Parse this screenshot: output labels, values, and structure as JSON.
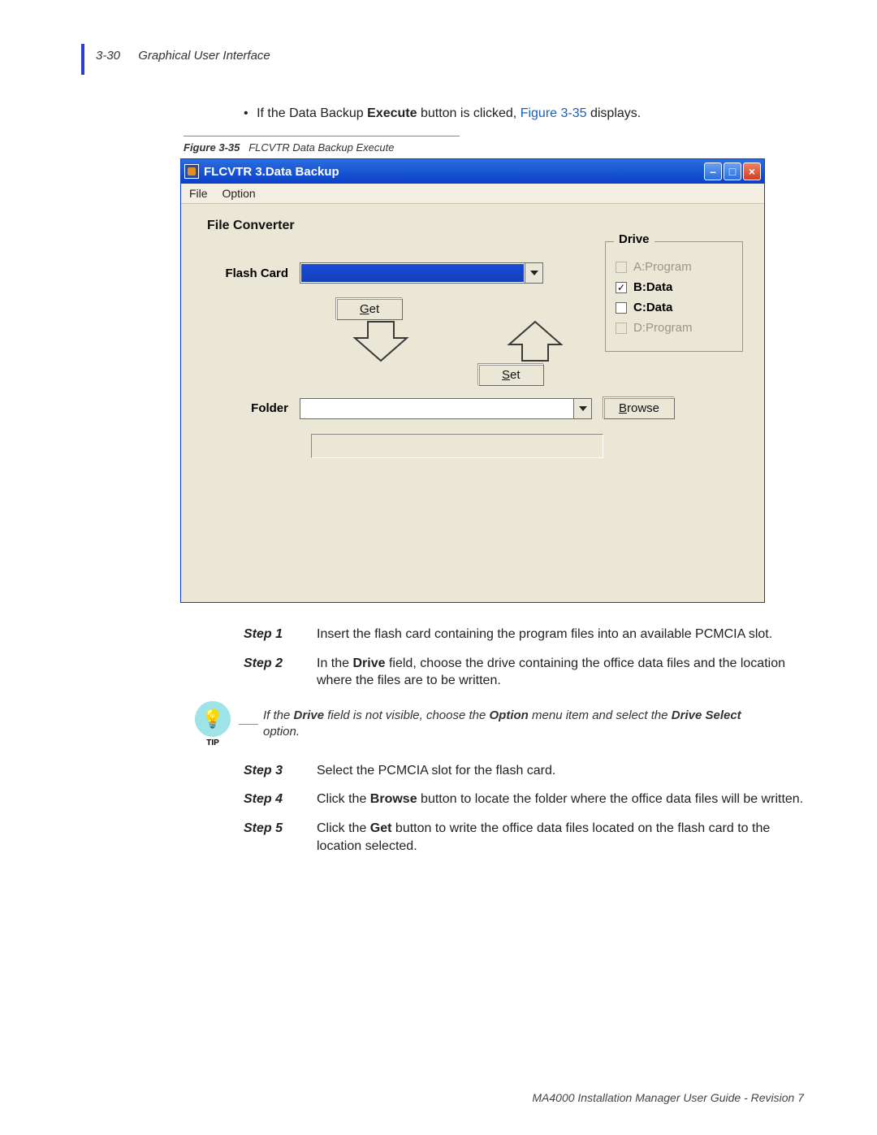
{
  "header": {
    "page_num": "3-30",
    "section": "Graphical User Interface"
  },
  "intro": {
    "pre": "If the Data Backup ",
    "bold": "Execute",
    "mid": " button is clicked, ",
    "link": "Figure 3-35",
    "post": " displays."
  },
  "figure": {
    "num": "Figure 3-35",
    "title": "FLCVTR Data Backup Execute"
  },
  "window": {
    "title": "FLCVTR  3.Data Backup",
    "menu": {
      "file": "File",
      "option": "Option"
    },
    "heading": "File Converter",
    "drive": {
      "legend": "Drive",
      "items": [
        {
          "label": "A:Program",
          "checked": false,
          "enabled": false
        },
        {
          "label": "B:Data",
          "checked": true,
          "enabled": true
        },
        {
          "label": "C:Data",
          "checked": false,
          "enabled": true
        },
        {
          "label": "D:Program",
          "checked": false,
          "enabled": false
        }
      ]
    },
    "flash_label": "Flash Card",
    "folder_label": "Folder",
    "get_label": "Get",
    "set_label": "Set",
    "browse_label": "Browse",
    "colors": {
      "titlebar_start": "#2a6de0",
      "titlebar_end": "#0a3fc7",
      "client_bg": "#eae7d7",
      "combo_highlight": "#1a4bd8"
    }
  },
  "steps": [
    {
      "n": "Step 1",
      "parts": [
        {
          "t": "Insert the flash card containing the program files into an available PCMCIA slot."
        }
      ]
    },
    {
      "n": "Step 2",
      "parts": [
        {
          "t": "In the "
        },
        {
          "b": "Drive"
        },
        {
          "t": " field, choose the drive containing the office data files and the location where the files are to be written."
        }
      ]
    },
    {
      "n": "Step 3",
      "parts": [
        {
          "t": "Select the PCMCIA slot for the flash card."
        }
      ]
    },
    {
      "n": "Step 4",
      "parts": [
        {
          "t": "Click the "
        },
        {
          "b": "Browse"
        },
        {
          "t": " button to locate the folder where the office data files will be written."
        }
      ]
    },
    {
      "n": "Step 5",
      "parts": [
        {
          "t": "Click the "
        },
        {
          "b": "Get"
        },
        {
          "t": " button to write the office data files located on the flash card to the location selected."
        }
      ]
    }
  ],
  "tip": {
    "label": "TIP",
    "parts": [
      {
        "t": "If the "
      },
      {
        "b": "Drive"
      },
      {
        "t": " field is not visible, choose the "
      },
      {
        "b": "Option"
      },
      {
        "t": " menu item and select the "
      },
      {
        "b": "Drive Select"
      },
      {
        "t": " option."
      }
    ]
  },
  "footer": "MA4000 Installation Manager User Guide - Revision 7"
}
